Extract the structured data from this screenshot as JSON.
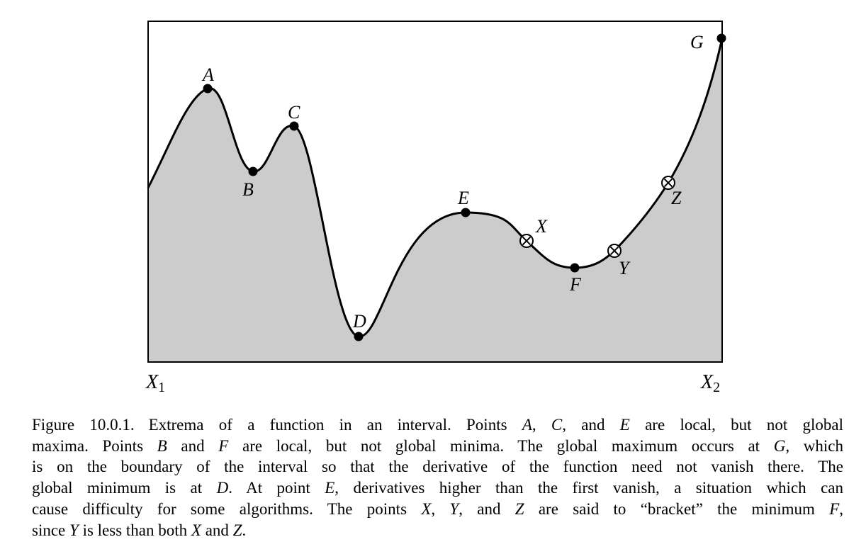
{
  "figure": {
    "points": {
      "A": {
        "label": "A",
        "kind": "local-maximum"
      },
      "B": {
        "label": "B",
        "kind": "local-minimum"
      },
      "C": {
        "label": "C",
        "kind": "local-maximum"
      },
      "D": {
        "label": "D",
        "kind": "global-minimum"
      },
      "E": {
        "label": "E",
        "kind": "local-maximum"
      },
      "F": {
        "label": "F",
        "kind": "local-minimum"
      },
      "G": {
        "label": "G",
        "kind": "global-maximum"
      },
      "X": {
        "label": "X",
        "kind": "bracket"
      },
      "Y": {
        "label": "Y",
        "kind": "bracket"
      },
      "Z": {
        "label": "Z",
        "kind": "bracket"
      }
    },
    "axis_labels": {
      "left": {
        "letter": "X",
        "sub": "1"
      },
      "right": {
        "letter": "X",
        "sub": "2"
      }
    },
    "colors": {
      "fill": "#cccccc",
      "stroke": "#000000",
      "background": "#ffffff"
    }
  },
  "caption": {
    "number": "Figure 10.0.1.",
    "lines": [
      [
        "Extrema of a function in an interval.  Points ",
        {
          "i": "A"
        },
        ", ",
        {
          "i": "C"
        },
        ", and ",
        {
          "i": "E"
        },
        " are local, but not global"
      ],
      [
        "maxima.  Points ",
        {
          "i": "B"
        },
        " and ",
        {
          "i": "F"
        },
        " are local, but not global minima.  The global maximum occurs at ",
        {
          "i": "G"
        },
        ", which"
      ],
      [
        "is on the boundary of the interval so that the derivative of the function need not vanish there.  The"
      ],
      [
        "global minimum is at ",
        {
          "i": "D"
        },
        ".  At point ",
        {
          "i": "E"
        },
        ", derivatives higher than the first vanish, a situation which can"
      ],
      [
        "cause difficulty for some algorithms.  The points ",
        {
          "i": "X"
        },
        ", ",
        {
          "i": "Y"
        },
        ", and ",
        {
          "i": "Z"
        },
        " are said to “bracket” the minimum ",
        {
          "i": "F"
        },
        ","
      ],
      [
        "since ",
        {
          "i": "Y"
        },
        " is less than both ",
        {
          "i": "X"
        },
        " and ",
        {
          "i": "Z"
        },
        "."
      ]
    ]
  }
}
